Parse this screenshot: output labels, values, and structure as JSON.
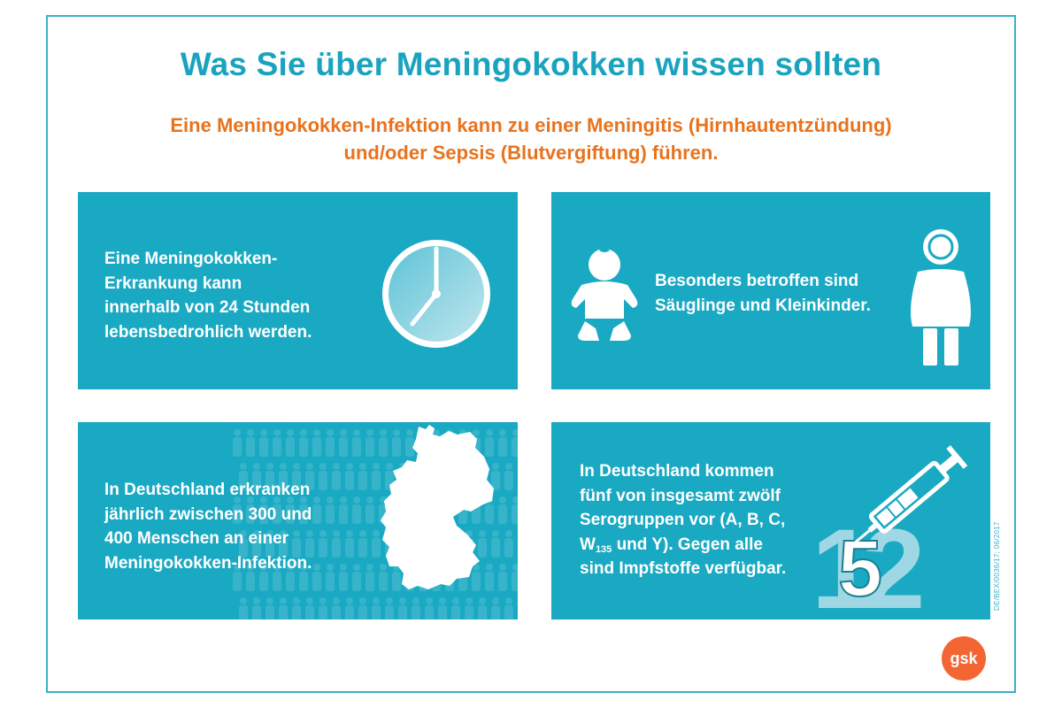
{
  "title": "Was Sie über Meningokokken wissen sollten",
  "subtitle": {
    "line1": "Eine Meningokokken-Infektion kann zu einer Meningitis (Hirnhautentzündung)",
    "line2": "und/oder Sepsis (Blutvergiftung) führen."
  },
  "panels": [
    {
      "lines": [
        "Eine Meningokokken-",
        "Erkrankung kann",
        "innerhalb von 24 Stunden",
        "lebensbedrohlich werden."
      ],
      "icon": "clock-icon"
    },
    {
      "lines": [
        "Besonders betroffen sind",
        "Säuglinge und Kleinkinder."
      ],
      "icons": [
        "baby-icon",
        "child-icon"
      ]
    },
    {
      "lines": [
        "In Deutschland erkranken",
        "jährlich zwischen 300 und",
        "400 Menschen an einer",
        "Meningokokken-Infektion."
      ],
      "icon": "germany-map-icon"
    },
    {
      "lines": [
        "In Deutschland kommen",
        "fünf von insgesamt zwölf",
        "Serogruppen vor (A, B, C,"
      ],
      "w_prefix": "W",
      "w_sub": "135",
      "w_suffix": " und Y). Gegen alle",
      "last_line": "sind Impfstoffe verfügbar.",
      "icon": "syringe-icon",
      "big_number_back": "12",
      "big_number_front": "5"
    }
  ],
  "doc_id": "DE/BEX/0036/17; 06/2017",
  "logo_text": "gsk",
  "colors": {
    "title": "#1aa3bf",
    "subtitle": "#e8731e",
    "panel": "#1aa9c3",
    "frame": "#39b2c8",
    "logo": "#f36633"
  }
}
